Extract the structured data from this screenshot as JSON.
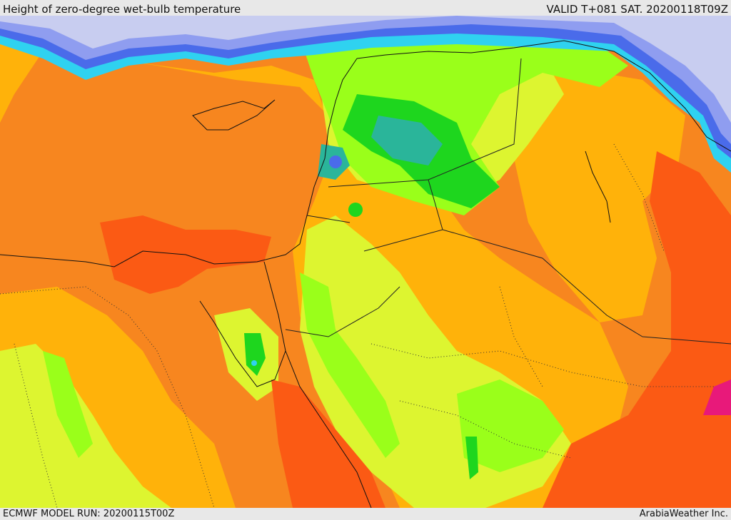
{
  "header": {
    "title": "Height of zero-degree wet-bulb temperature",
    "valid": "VALID T+081 SAT. 20200118T09Z"
  },
  "footer": {
    "model_run": "ECMWF MODEL RUN: 20200115T00Z",
    "credit": "ArabiaWeather Inc."
  },
  "palette": {
    "lowest": "#c8cdf0",
    "very_low": "#8f9df0",
    "low": "#4a6bea",
    "cyan": "#2fd2f0",
    "teal": "#2ab59a",
    "green": "#1ed61e",
    "lime": "#9aff1a",
    "yellow_green": "#ddf530",
    "yellow": "#ffcc0a",
    "amber": "#ffb20a",
    "orange": "#f7861f",
    "red_orange": "#fb5a14",
    "magenta": "#e8197a"
  }
}
